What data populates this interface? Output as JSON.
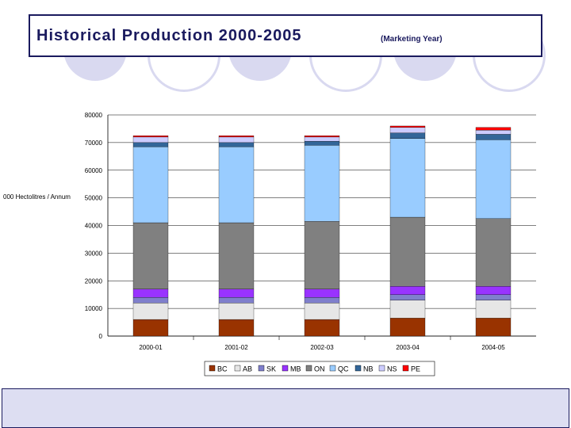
{
  "header": {
    "title": "Historical Production 2000-2005",
    "subtitle": "(Marketing Year)"
  },
  "colors": {
    "title": "#1a1a5e",
    "decoration": "#d9d9f0",
    "footer": "#dddef2"
  },
  "chart_data": {
    "type": "bar",
    "stacked": true,
    "ylabel": "000 Hectolitres / Annum",
    "ylim": [
      0,
      80000
    ],
    "yticks": [
      "0",
      "10000",
      "20000",
      "30000",
      "40000",
      "50000",
      "60000",
      "70000",
      "80000"
    ],
    "categories": [
      "2000-01",
      "2001-02",
      "2002-03",
      "2003-04",
      "2004-05"
    ],
    "grid": true,
    "legend_position": "bottom",
    "series": [
      {
        "name": "BC",
        "color": "#993300",
        "values": [
          6000,
          6000,
          6000,
          6500,
          6500
        ]
      },
      {
        "name": "AB",
        "color": "#e6e6e6",
        "values": [
          6000,
          6000,
          6000,
          6500,
          6500
        ]
      },
      {
        "name": "SK",
        "color": "#7f7fcc",
        "values": [
          2000,
          2000,
          2000,
          2000,
          2000
        ]
      },
      {
        "name": "MB",
        "color": "#9933ff",
        "values": [
          3000,
          3000,
          3000,
          3000,
          3000
        ]
      },
      {
        "name": "ON",
        "color": "#808080",
        "values": [
          24000,
          24000,
          24500,
          25000,
          24500
        ]
      },
      {
        "name": "QC",
        "color": "#99ccff",
        "values": [
          27500,
          27500,
          27500,
          28500,
          28500
        ]
      },
      {
        "name": "NB",
        "color": "#336699",
        "values": [
          1500,
          1500,
          1500,
          2000,
          2000
        ]
      },
      {
        "name": "NS",
        "color": "#ccccff",
        "values": [
          2000,
          2000,
          1500,
          2000,
          1500
        ]
      },
      {
        "name": "PE",
        "color": "#ff0000",
        "values": [
          500,
          500,
          500,
          500,
          1000
        ]
      }
    ]
  }
}
